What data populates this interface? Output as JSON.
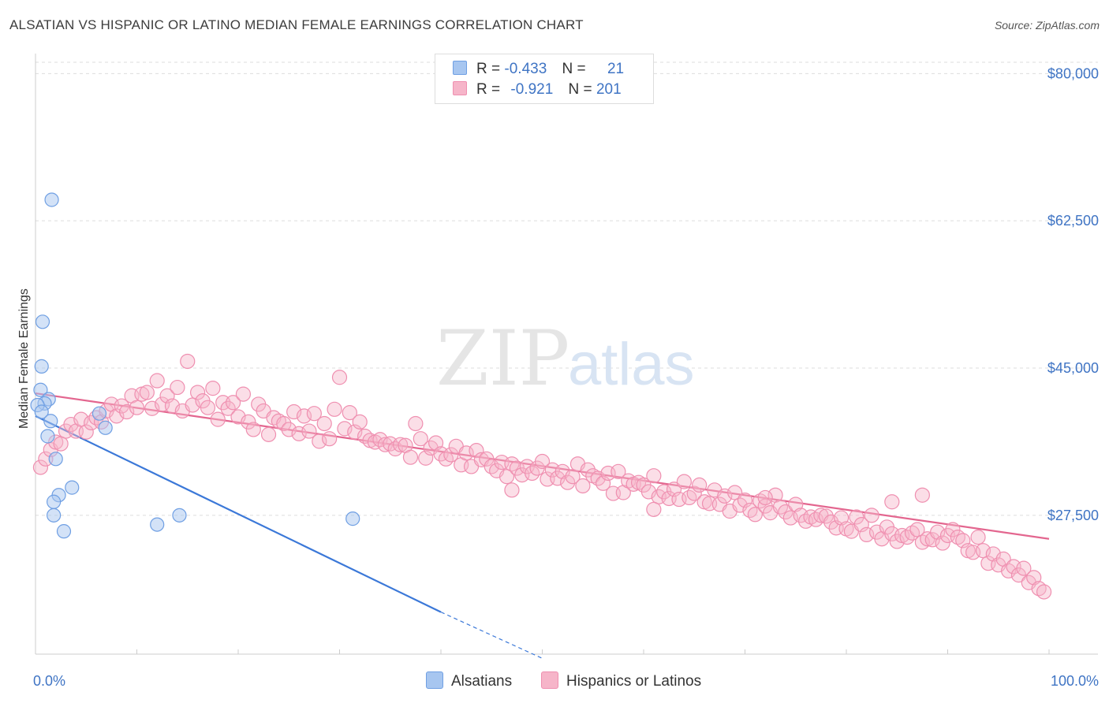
{
  "title": "ALSATIAN VS HISPANIC OR LATINO MEDIAN FEMALE EARNINGS CORRELATION CHART",
  "source": "Source: ZipAtlas.com",
  "watermark": {
    "zip": "ZIP",
    "atlas": "atlas"
  },
  "legend": {
    "rows": [
      {
        "r_label": "R =",
        "r_value": "-0.433",
        "n_label": "N =",
        "n_value": "21",
        "color": "#a7c6f0"
      },
      {
        "r_label": "R =",
        "r_value": "-0.921",
        "n_label": "N =",
        "n_value": "201",
        "color": "#f6b5c9"
      }
    ]
  },
  "bottom_legend": [
    {
      "label": "Alsatians",
      "color": "#a7c6f0"
    },
    {
      "label": "Hispanics or Latinos",
      "color": "#f6b5c9"
    }
  ],
  "chart_data": {
    "type": "scatter",
    "ylabel": "Median Female Earnings",
    "xlim": [
      0,
      100
    ],
    "ylim": [
      11000,
      82000
    ],
    "x_tick_labels": [
      "0.0%",
      "100.0%"
    ],
    "y_ticks": [
      80000,
      62500,
      45000,
      27500
    ],
    "y_tick_labels": [
      "$80,000",
      "$62,500",
      "$45,000",
      "$27,500"
    ],
    "grid": "horizontal-dashed",
    "legend_placement": "top-center",
    "series": [
      {
        "name": "Alsatians",
        "color": "#6f9fe3",
        "trend": {
          "x0": 0,
          "y0": 39300,
          "x1": 40,
          "y1": 16000,
          "dash_x1": 50,
          "dash_y1": 10500
        },
        "points": [
          [
            1.6,
            65000
          ],
          [
            0.7,
            50500
          ],
          [
            0.6,
            45200
          ],
          [
            0.5,
            42400
          ],
          [
            1.3,
            41300
          ],
          [
            0.9,
            40800
          ],
          [
            0.2,
            40600
          ],
          [
            0.6,
            39800
          ],
          [
            1.5,
            38700
          ],
          [
            1.2,
            36900
          ],
          [
            6.3,
            39600
          ],
          [
            6.9,
            37900
          ],
          [
            2.0,
            34200
          ],
          [
            3.6,
            30800
          ],
          [
            2.3,
            29900
          ],
          [
            1.8,
            29100
          ],
          [
            1.8,
            27500
          ],
          [
            2.8,
            25600
          ],
          [
            12.0,
            26400
          ],
          [
            14.2,
            27500
          ],
          [
            31.3,
            27100
          ]
        ]
      },
      {
        "name": "Hispanics or Latinos",
        "color": "#ef8fb0",
        "trend": {
          "x0": 0,
          "y0": 42000,
          "x1": 100,
          "y1": 24700
        },
        "points": [
          [
            0.5,
            33200
          ],
          [
            1.0,
            34200
          ],
          [
            1.5,
            35300
          ],
          [
            2.0,
            36200
          ],
          [
            2.5,
            36000
          ],
          [
            3.0,
            37500
          ],
          [
            3.5,
            38300
          ],
          [
            4.0,
            37500
          ],
          [
            4.5,
            38900
          ],
          [
            5.0,
            37400
          ],
          [
            5.5,
            38500
          ],
          [
            6.0,
            39100
          ],
          [
            6.5,
            38600
          ],
          [
            7.0,
            39900
          ],
          [
            7.5,
            40700
          ],
          [
            8.0,
            39300
          ],
          [
            8.5,
            40500
          ],
          [
            9.0,
            39800
          ],
          [
            9.5,
            41700
          ],
          [
            10.0,
            40300
          ],
          [
            10.5,
            41900
          ],
          [
            11.0,
            42100
          ],
          [
            11.5,
            40200
          ],
          [
            12.0,
            43500
          ],
          [
            12.5,
            40700
          ],
          [
            13.0,
            41700
          ],
          [
            13.5,
            40500
          ],
          [
            14.0,
            42700
          ],
          [
            14.5,
            39900
          ],
          [
            15.0,
            45800
          ],
          [
            15.5,
            40600
          ],
          [
            16.0,
            42100
          ],
          [
            16.5,
            41100
          ],
          [
            17.0,
            40300
          ],
          [
            17.5,
            42600
          ],
          [
            18.0,
            38900
          ],
          [
            18.5,
            40900
          ],
          [
            19.0,
            40200
          ],
          [
            19.5,
            40900
          ],
          [
            20.0,
            39200
          ],
          [
            20.5,
            41900
          ],
          [
            21.0,
            38600
          ],
          [
            21.5,
            37700
          ],
          [
            22.0,
            40700
          ],
          [
            22.5,
            39900
          ],
          [
            23.0,
            37100
          ],
          [
            23.5,
            39100
          ],
          [
            24.0,
            38700
          ],
          [
            24.5,
            38400
          ],
          [
            25.0,
            37700
          ],
          [
            25.5,
            39800
          ],
          [
            26.0,
            37200
          ],
          [
            26.5,
            39300
          ],
          [
            27.0,
            37500
          ],
          [
            27.5,
            39600
          ],
          [
            28.0,
            36300
          ],
          [
            28.5,
            38400
          ],
          [
            29.0,
            36600
          ],
          [
            29.5,
            40100
          ],
          [
            30.0,
            43900
          ],
          [
            30.5,
            37800
          ],
          [
            31.0,
            39700
          ],
          [
            31.5,
            37400
          ],
          [
            32.0,
            38600
          ],
          [
            32.5,
            36900
          ],
          [
            33.0,
            36400
          ],
          [
            33.5,
            36200
          ],
          [
            34.0,
            36500
          ],
          [
            34.5,
            35900
          ],
          [
            35.0,
            36000
          ],
          [
            35.5,
            35400
          ],
          [
            36.0,
            35900
          ],
          [
            36.5,
            35800
          ],
          [
            37.0,
            34400
          ],
          [
            37.5,
            38400
          ],
          [
            38.0,
            36600
          ],
          [
            38.5,
            34300
          ],
          [
            39.0,
            35500
          ],
          [
            39.5,
            36100
          ],
          [
            40.0,
            34800
          ],
          [
            40.5,
            34200
          ],
          [
            41.0,
            34700
          ],
          [
            41.5,
            35700
          ],
          [
            42.0,
            33500
          ],
          [
            42.5,
            34900
          ],
          [
            43.0,
            33300
          ],
          [
            43.5,
            35200
          ],
          [
            44.0,
            34100
          ],
          [
            44.5,
            34200
          ],
          [
            45.0,
            33300
          ],
          [
            45.5,
            32800
          ],
          [
            46.0,
            33800
          ],
          [
            46.5,
            32100
          ],
          [
            47.0,
            33600
          ],
          [
            47.5,
            33100
          ],
          [
            48.0,
            32300
          ],
          [
            48.5,
            33300
          ],
          [
            49.0,
            32500
          ],
          [
            49.5,
            33100
          ],
          [
            50.0,
            33900
          ],
          [
            50.5,
            31800
          ],
          [
            51.0,
            32900
          ],
          [
            51.5,
            31900
          ],
          [
            52.0,
            32700
          ],
          [
            52.5,
            31400
          ],
          [
            53.0,
            32100
          ],
          [
            53.5,
            33600
          ],
          [
            54.0,
            31000
          ],
          [
            54.5,
            32900
          ],
          [
            55.0,
            32200
          ],
          [
            55.5,
            31900
          ],
          [
            56.0,
            31300
          ],
          [
            56.5,
            32500
          ],
          [
            57.0,
            30100
          ],
          [
            57.5,
            32700
          ],
          [
            58.0,
            30200
          ],
          [
            58.5,
            31600
          ],
          [
            59.0,
            31200
          ],
          [
            59.5,
            31400
          ],
          [
            60.0,
            31100
          ],
          [
            60.5,
            30300
          ],
          [
            61.0,
            32200
          ],
          [
            61.5,
            29700
          ],
          [
            62.0,
            30300
          ],
          [
            62.5,
            29500
          ],
          [
            63.0,
            30600
          ],
          [
            63.5,
            29400
          ],
          [
            64.0,
            31500
          ],
          [
            64.5,
            29600
          ],
          [
            65.0,
            30100
          ],
          [
            65.5,
            31100
          ],
          [
            66.0,
            29100
          ],
          [
            66.5,
            28900
          ],
          [
            67.0,
            30500
          ],
          [
            67.5,
            28800
          ],
          [
            68.0,
            29800
          ],
          [
            68.5,
            28000
          ],
          [
            69.0,
            30200
          ],
          [
            69.5,
            28700
          ],
          [
            70.0,
            29300
          ],
          [
            70.5,
            28100
          ],
          [
            71.0,
            27600
          ],
          [
            71.5,
            29200
          ],
          [
            72.0,
            28600
          ],
          [
            72.5,
            27800
          ],
          [
            73.0,
            29900
          ],
          [
            73.5,
            28500
          ],
          [
            74.0,
            27900
          ],
          [
            74.5,
            27200
          ],
          [
            75.0,
            28800
          ],
          [
            75.5,
            27500
          ],
          [
            76.0,
            26800
          ],
          [
            76.5,
            27300
          ],
          [
            77.0,
            27000
          ],
          [
            77.5,
            27500
          ],
          [
            78.0,
            27400
          ],
          [
            78.5,
            26700
          ],
          [
            79.0,
            26000
          ],
          [
            79.5,
            27200
          ],
          [
            80.0,
            25900
          ],
          [
            80.5,
            25600
          ],
          [
            81.0,
            27300
          ],
          [
            81.5,
            26400
          ],
          [
            82.0,
            25200
          ],
          [
            82.5,
            27500
          ],
          [
            83.0,
            25500
          ],
          [
            83.5,
            24700
          ],
          [
            84.0,
            26100
          ],
          [
            84.5,
            25300
          ],
          [
            85.0,
            24400
          ],
          [
            85.5,
            25100
          ],
          [
            86.0,
            24900
          ],
          [
            86.5,
            25400
          ],
          [
            87.0,
            25800
          ],
          [
            87.5,
            24300
          ],
          [
            88.0,
            24700
          ],
          [
            88.5,
            24600
          ],
          [
            89.0,
            25500
          ],
          [
            89.5,
            24200
          ],
          [
            90.0,
            25100
          ],
          [
            90.5,
            25800
          ],
          [
            91.0,
            24900
          ],
          [
            91.5,
            24500
          ],
          [
            92.0,
            23300
          ],
          [
            92.5,
            23100
          ],
          [
            93.0,
            24900
          ],
          [
            93.5,
            23300
          ],
          [
            94.0,
            21800
          ],
          [
            94.5,
            22900
          ],
          [
            95.0,
            21600
          ],
          [
            95.5,
            22300
          ],
          [
            96.0,
            20900
          ],
          [
            96.5,
            21400
          ],
          [
            97.0,
            20400
          ],
          [
            97.5,
            21200
          ],
          [
            98.0,
            19500
          ],
          [
            98.5,
            20100
          ],
          [
            99.0,
            18800
          ],
          [
            99.5,
            18400
          ],
          [
            87.5,
            29900
          ],
          [
            72.0,
            29600
          ],
          [
            84.5,
            29100
          ],
          [
            61.0,
            28200
          ],
          [
            47.0,
            30500
          ]
        ]
      }
    ]
  }
}
